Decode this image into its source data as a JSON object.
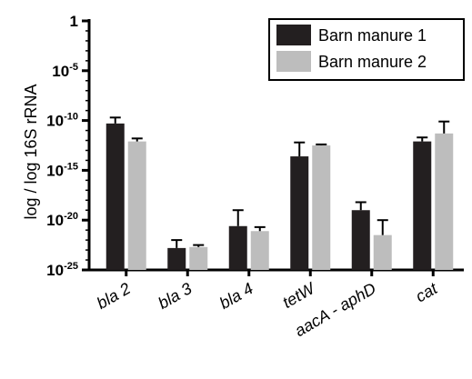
{
  "chart_data": {
    "type": "bar",
    "ylabel": "log / log 16S rRNA",
    "xlabel": "",
    "yscale": "log10",
    "ylim_exponent": [
      -25,
      0
    ],
    "y_ticks": [
      {
        "exp": 0,
        "base": "1",
        "sup": ""
      },
      {
        "exp": -5,
        "base": "10",
        "sup": "-5"
      },
      {
        "exp": -10,
        "base": "10",
        "sup": "-10"
      },
      {
        "exp": -15,
        "base": "10",
        "sup": "-15"
      },
      {
        "exp": -20,
        "base": "10",
        "sup": "-20"
      },
      {
        "exp": -25,
        "base": "10",
        "sup": "-25"
      }
    ],
    "categories": [
      "bla 2",
      "bla 3",
      "bla 4",
      "tetW",
      "aacA - aphD",
      "cat"
    ],
    "series": [
      {
        "name": "Barn manure 1",
        "color": "#231f20",
        "values_log10": [
          -10.3,
          -22.8,
          -20.6,
          -13.6,
          -19.0,
          -12.1
        ],
        "error_upper_log10": [
          -9.7,
          -22.0,
          -19.0,
          -12.2,
          -18.2,
          -11.7
        ]
      },
      {
        "name": "Barn manure 2",
        "color": "#bdbdbd",
        "values_log10": [
          -12.1,
          -22.7,
          -21.1,
          -12.5,
          -21.5,
          -11.3
        ],
        "error_upper_log10": [
          -11.8,
          -22.5,
          -20.7,
          -12.4,
          -20.0,
          -10.1
        ]
      }
    ],
    "legend_position": "top-right",
    "grid": false
  }
}
